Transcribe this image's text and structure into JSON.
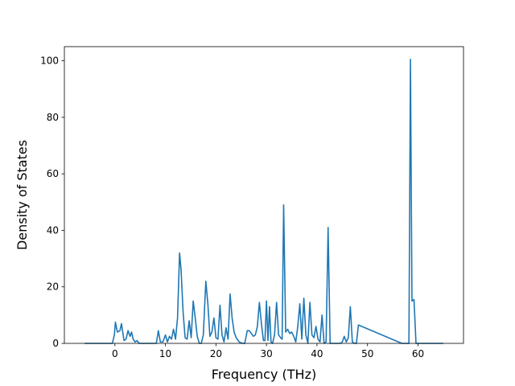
{
  "chart_data": {
    "type": "line",
    "title": "",
    "xlabel": "Frequency (THz)",
    "ylabel": "Density of States",
    "xlim": [
      -10,
      69
    ],
    "ylim": [
      0,
      105
    ],
    "x_ticks": [
      "0",
      "10",
      "20",
      "30",
      "40",
      "50",
      "60"
    ],
    "y_ticks": [
      "0",
      "20",
      "40",
      "60",
      "80",
      "100"
    ],
    "grid": false,
    "legend": "none",
    "line_color": "#1f77b4",
    "series": [
      {
        "x": [
          -6,
          -0.5,
          -0.1,
          0.1,
          0.5,
          1.0,
          1.3,
          1.8,
          2.2,
          2.6,
          3.0,
          3.3,
          3.6,
          4.0,
          4.4,
          4.8,
          5.2,
          5.6,
          8.2,
          8.6,
          9.0,
          9.5,
          10.0,
          10.4,
          10.8,
          11.2,
          11.6,
          12.0,
          12.4,
          12.8,
          13.1,
          13.5,
          13.9,
          14.3,
          14.7,
          15.1,
          15.5,
          15.9,
          16.3,
          16.7,
          17.1,
          17.5,
          18.0,
          18.4,
          18.8,
          19.2,
          19.6,
          20.0,
          20.4,
          20.8,
          21.2,
          21.6,
          22.0,
          22.4,
          22.8,
          23.2,
          23.6,
          24.0,
          24.6,
          25.2,
          25.7,
          26.2,
          26.6,
          27.0,
          27.4,
          27.8,
          28.2,
          28.6,
          29.0,
          29.4,
          29.7,
          30.0,
          30.3,
          30.6,
          30.9,
          31.2,
          31.6,
          32.0,
          32.4,
          32.8,
          33.1,
          33.4,
          33.8,
          34.2,
          34.6,
          35.0,
          35.4,
          35.8,
          36.2,
          36.6,
          37.0,
          37.4,
          37.8,
          38.2,
          38.6,
          39.0,
          39.4,
          39.8,
          40.2,
          40.6,
          41.0,
          41.4,
          41.8,
          42.2,
          42.6,
          43.0,
          44.2,
          44.6,
          45.0,
          45.4,
          45.8,
          46.2,
          46.6,
          47.0,
          47.4,
          47.8,
          48.2,
          56.8,
          57.2,
          57.6,
          57.9,
          58.2,
          58.5,
          58.8,
          59.2,
          59.6,
          65
        ]
      }
    ]
  }
}
